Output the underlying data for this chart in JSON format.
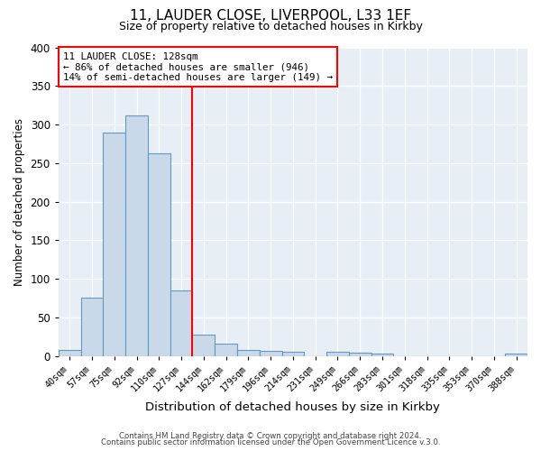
{
  "title_line1": "11, LAUDER CLOSE, LIVERPOOL, L33 1EF",
  "title_line2": "Size of property relative to detached houses in Kirkby",
  "xlabel": "Distribution of detached houses by size in Kirkby",
  "ylabel": "Number of detached properties",
  "bar_labels": [
    "40sqm",
    "57sqm",
    "75sqm",
    "92sqm",
    "110sqm",
    "127sqm",
    "144sqm",
    "162sqm",
    "179sqm",
    "196sqm",
    "214sqm",
    "231sqm",
    "249sqm",
    "266sqm",
    "283sqm",
    "301sqm",
    "318sqm",
    "335sqm",
    "353sqm",
    "370sqm",
    "388sqm"
  ],
  "bar_heights": [
    8,
    75,
    290,
    312,
    263,
    85,
    28,
    16,
    8,
    6,
    5,
    0,
    5,
    4,
    3,
    0,
    0,
    0,
    0,
    0,
    3
  ],
  "bar_color": "#c9d9ea",
  "bar_edge_color": "#6699bb",
  "vline_x": 5.5,
  "vline_color": "red",
  "annotation_title": "11 LAUDER CLOSE: 128sqm",
  "annotation_line2": "← 86% of detached houses are smaller (946)",
  "annotation_line3": "14% of semi-detached houses are larger (149) →",
  "annotation_box_edge": "red",
  "ylim": [
    0,
    400
  ],
  "yticks": [
    0,
    50,
    100,
    150,
    200,
    250,
    300,
    350,
    400
  ],
  "footer_line1": "Contains HM Land Registry data © Crown copyright and database right 2024.",
  "footer_line2": "Contains public sector information licensed under the Open Government Licence v.3.0.",
  "bg_color": "#ffffff",
  "plot_bg_color": "#e8eef6"
}
